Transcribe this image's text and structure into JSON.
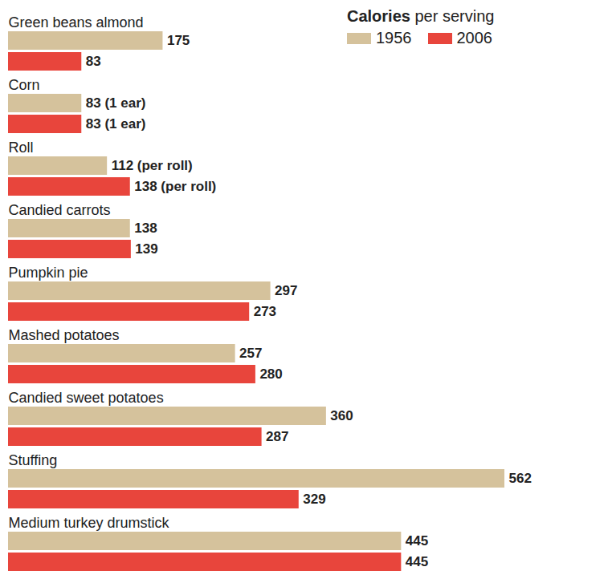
{
  "chart_data": {
    "type": "bar",
    "orientation": "horizontal",
    "title": "Calories per serving",
    "categories": [
      "Green beans almond",
      "Corn",
      "Roll",
      "Candied carrots",
      "Pumpkin pie",
      "Mashed potatoes",
      "Candied sweet potatoes",
      "Stuffing",
      "Medium turkey drumstick"
    ],
    "series": [
      {
        "name": "1956",
        "color": "#d5c29c",
        "values": [
          175,
          83,
          112,
          138,
          297,
          257,
          360,
          562,
          445
        ],
        "value_labels": [
          "175",
          "83 (1 ear)",
          "112 (per roll)",
          "138",
          "297",
          "257",
          "360",
          "562",
          "445"
        ]
      },
      {
        "name": "2006",
        "color": "#e8453c",
        "values": [
          83,
          83,
          138,
          139,
          273,
          280,
          287,
          329,
          445
        ],
        "value_labels": [
          "83",
          "83 (1 ear)",
          "138 (per roll)",
          "139",
          "273",
          "280",
          "287",
          "329",
          "445"
        ]
      }
    ],
    "xlim": [
      0,
      562
    ],
    "data_labels": true,
    "tick_labels": false,
    "legend": "top-right"
  }
}
